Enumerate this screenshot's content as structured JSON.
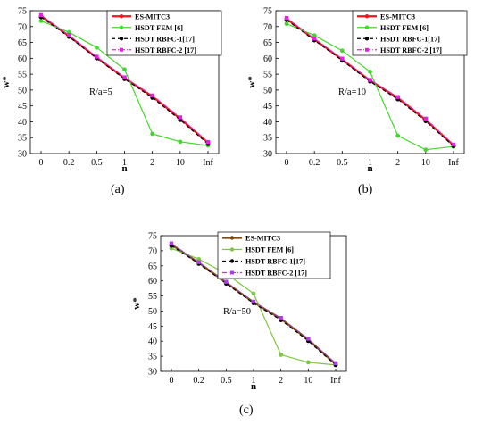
{
  "chart_data": [
    {
      "type": "line",
      "caption": "(a)",
      "annotation": "R/a=5",
      "xlabel": "n",
      "ylabel": "w*",
      "categories": [
        "0",
        "0.2",
        "0.5",
        "1",
        "2",
        "10",
        "Inf"
      ],
      "ylim": [
        30,
        75
      ],
      "yticks": [
        30,
        35,
        40,
        45,
        50,
        55,
        60,
        65,
        70,
        75
      ],
      "grid": false,
      "legend_position": "top-right",
      "series": [
        {
          "name": "ES-MITC3",
          "color": "#e8191e",
          "marker": "circle",
          "style": "solid",
          "values": [
            73.3,
            67.0,
            60.2,
            53.8,
            48.0,
            41.0,
            33.4
          ]
        },
        {
          "name": "HSDT FEM [6]",
          "color": "#44d62c",
          "marker": "circle",
          "style": "solid",
          "values": [
            71.8,
            68.2,
            63.4,
            56.5,
            36.2,
            33.7,
            32.5
          ]
        },
        {
          "name": "HSDT RBFC-1[17]",
          "color": "#000000",
          "marker": "circle",
          "style": "dashed",
          "values": [
            73.0,
            66.8,
            60.0,
            53.5,
            47.6,
            40.6,
            33.0
          ]
        },
        {
          "name": "HSDT RBFC-2 [17]",
          "color": "#e61ee6",
          "marker": "square",
          "style": "dashdot",
          "values": [
            73.6,
            67.3,
            60.5,
            54.0,
            48.3,
            41.4,
            33.6
          ]
        }
      ]
    },
    {
      "type": "line",
      "caption": "(b)",
      "annotation": "R/a=10",
      "xlabel": "n",
      "ylabel": "w*",
      "categories": [
        "0",
        "0.2",
        "0.5",
        "1",
        "2",
        "10",
        "Inf"
      ],
      "ylim": [
        30,
        75
      ],
      "yticks": [
        30,
        35,
        40,
        45,
        50,
        55,
        60,
        65,
        70,
        75
      ],
      "grid": false,
      "legend_position": "top-right",
      "series": [
        {
          "name": "ES-MITC3",
          "color": "#e8191e",
          "marker": "circle",
          "style": "solid",
          "values": [
            72.4,
            66.0,
            59.6,
            53.0,
            47.5,
            40.6,
            32.6
          ]
        },
        {
          "name": "HSDT FEM [6]",
          "color": "#44d62c",
          "marker": "circle",
          "style": "solid",
          "values": [
            70.9,
            67.2,
            62.4,
            55.8,
            35.6,
            31.2,
            32.2
          ]
        },
        {
          "name": "HSDT RBFC-1[17]",
          "color": "#000000",
          "marker": "circle",
          "style": "dashed",
          "values": [
            72.1,
            65.7,
            59.3,
            52.7,
            47.1,
            40.2,
            32.3
          ]
        },
        {
          "name": "HSDT RBFC-2 [17]",
          "color": "#e61ee6",
          "marker": "square",
          "style": "dashdot",
          "values": [
            72.7,
            66.2,
            59.9,
            53.2,
            47.8,
            41.0,
            32.8
          ]
        }
      ]
    },
    {
      "type": "line",
      "caption": "(c)",
      "annotation": "R/a=50",
      "xlabel": "n",
      "ylabel": "w*",
      "categories": [
        "0",
        "0.2",
        "0.5",
        "1",
        "2",
        "10",
        "Inf"
      ],
      "ylim": [
        30,
        75
      ],
      "yticks": [
        30,
        35,
        40,
        45,
        50,
        55,
        60,
        65,
        70,
        75
      ],
      "grid": false,
      "legend_position": "top-right",
      "series": [
        {
          "name": "ES-MITC3",
          "color": "#7a4a12",
          "marker": "circle",
          "style": "solid",
          "values": [
            72.0,
            66.0,
            59.4,
            52.9,
            47.4,
            40.5,
            32.4
          ]
        },
        {
          "name": "HSDT FEM [6]",
          "color": "#7dc73f",
          "marker": "circle",
          "style": "solid",
          "values": [
            70.8,
            67.2,
            62.4,
            55.8,
            35.5,
            33.0,
            32.1
          ]
        },
        {
          "name": "HSDT RBFC-1[17]",
          "color": "#000000",
          "marker": "circle",
          "style": "dashed",
          "values": [
            71.7,
            65.7,
            59.1,
            52.6,
            47.0,
            40.1,
            32.1
          ]
        },
        {
          "name": "HSDT RBFC-2 [17]",
          "color": "#b03ce6",
          "marker": "square",
          "style": "dashdot",
          "values": [
            72.4,
            66.2,
            59.7,
            53.1,
            47.7,
            40.8,
            32.7
          ]
        }
      ]
    }
  ]
}
